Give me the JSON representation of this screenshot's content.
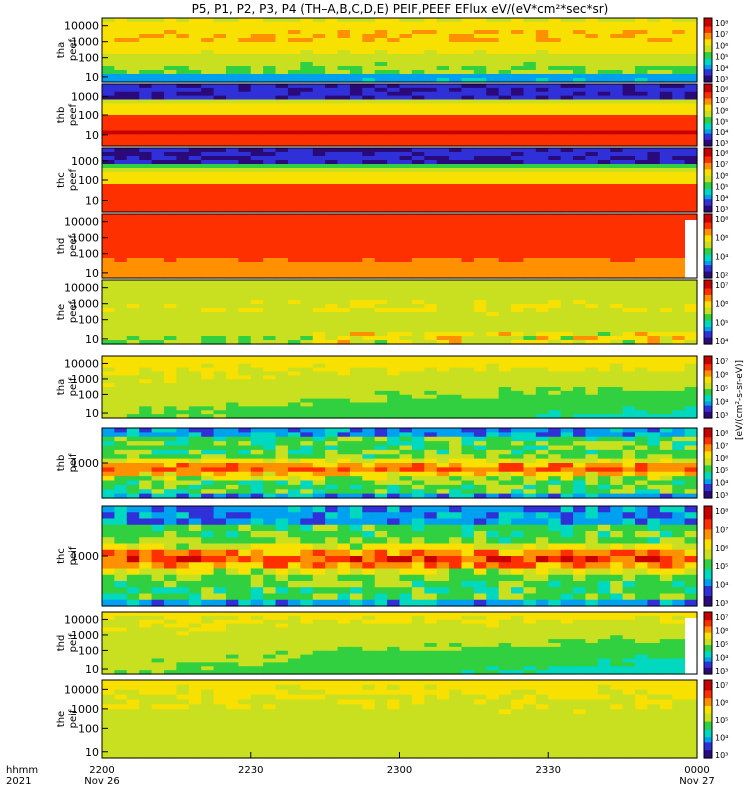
{
  "title": "P5, P1, P2, P3, P4 (TH–A,B,C,D,E) PEIF,PEEF EFlux eV/(eV*cm²*sec*sr)",
  "colorbar_unit_label": "[eV/(cm²-s-sr-eV)]",
  "x_axis": {
    "row_label_1": "hhmm",
    "row_label_2": "2021",
    "ticks": [
      {
        "hhmm": "2200",
        "date": "Nov 26"
      },
      {
        "hhmm": "2230",
        "date": ""
      },
      {
        "hhmm": "2300",
        "date": ""
      },
      {
        "hhmm": "2330",
        "date": ""
      },
      {
        "hhmm": "0000",
        "date": "Nov 27"
      }
    ]
  },
  "colors": {
    "spectrum": [
      "#2a0a7a",
      "#3030d8",
      "#00a0f0",
      "#00d8c0",
      "#30d040",
      "#c8e020",
      "#f8e000",
      "#ff9000",
      "#ff3000",
      "#c80000"
    ]
  },
  "chart_data": [
    {
      "type": "heatmap",
      "panel": "tha-peef",
      "ylabel": [
        "tha",
        "peef"
      ],
      "ytick_labels": [
        "10000",
        "1000",
        "100",
        "10"
      ],
      "cbar_labels": [
        "10⁸",
        "10⁷",
        "10⁶",
        "10⁵",
        "10⁴",
        "10³"
      ],
      "description_values": {
        "x_start": "2200",
        "x_end": "0000",
        "log_y": true
      }
    },
    {
      "type": "heatmap",
      "panel": "thb-peef",
      "ylabel": [
        "thb",
        "peef"
      ],
      "ytick_labels": [
        "1000",
        "100",
        "10"
      ],
      "cbar_labels": [
        "10⁸",
        "10⁷",
        "10⁶",
        "10⁵",
        "10⁴",
        "10³"
      ],
      "description_values": {
        "x_start": "2200",
        "x_end": "0000",
        "log_y": true
      }
    },
    {
      "type": "heatmap",
      "panel": "thc-peef",
      "ylabel": [
        "thc",
        "peef"
      ],
      "ytick_labels": [
        "1000",
        "100",
        "10"
      ],
      "cbar_labels": [
        "10⁸",
        "10⁷",
        "10⁶",
        "10⁵",
        "10⁴",
        "10³"
      ],
      "description_values": {
        "x_start": "2200",
        "x_end": "0000",
        "log_y": true
      }
    },
    {
      "type": "heatmap",
      "panel": "thd-peef",
      "ylabel": [
        "thd",
        "peef"
      ],
      "ytick_labels": [
        "10000",
        "1000",
        "100",
        "10"
      ],
      "cbar_labels": [
        "10⁸",
        "10⁶",
        "10⁴",
        "10²"
      ],
      "description_values": {
        "x_start": "2200",
        "x_end": "0000",
        "log_y": true
      }
    },
    {
      "type": "heatmap",
      "panel": "the-peef",
      "ylabel": [
        "the",
        "peef"
      ],
      "ytick_labels": [
        "10000",
        "1000",
        "100",
        "10"
      ],
      "cbar_labels": [
        "10⁷",
        "10⁶",
        "10⁵",
        "10⁴"
      ],
      "description_values": {
        "x_start": "2200",
        "x_end": "0000",
        "log_y": true
      }
    },
    {
      "type": "heatmap",
      "panel": "tha-peif",
      "ylabel": [
        "tha",
        "peif"
      ],
      "ytick_labels": [
        "10000",
        "1000",
        "100",
        "10"
      ],
      "cbar_labels": [
        "10⁷",
        "10⁶",
        "10⁵",
        "10⁴",
        "10³"
      ],
      "description_values": {
        "x_start": "2200",
        "x_end": "0000",
        "log_y": true
      }
    },
    {
      "type": "heatmap",
      "panel": "thb-peif",
      "ylabel": [
        "thb",
        "peif"
      ],
      "ytick_labels": [
        "1000"
      ],
      "cbar_labels": [
        "10⁸",
        "10⁷",
        "10⁶",
        "10⁵",
        "10⁴",
        "10³"
      ],
      "description_values": {
        "x_start": "2200",
        "x_end": "0000",
        "log_y": true
      }
    },
    {
      "type": "heatmap",
      "panel": "thc-peif",
      "ylabel": [
        "thc",
        "peif"
      ],
      "ytick_labels": [
        "1000"
      ],
      "cbar_labels": [
        "10⁸",
        "10⁷",
        "10⁶",
        "10⁵",
        "10⁴",
        "10³"
      ],
      "description_values": {
        "x_start": "2200",
        "x_end": "0000",
        "log_y": true
      }
    },
    {
      "type": "heatmap",
      "panel": "thd-peif",
      "ylabel": [
        "thd",
        "peif"
      ],
      "ytick_labels": [
        "10000",
        "1000",
        "100",
        "10"
      ],
      "cbar_labels": [
        "10⁷",
        "10⁶",
        "10⁵",
        "10⁴",
        "10³"
      ],
      "description_values": {
        "x_start": "2200",
        "x_end": "0000",
        "log_y": true
      }
    },
    {
      "type": "heatmap",
      "panel": "the-peif",
      "ylabel": [
        "the",
        "peif"
      ],
      "ytick_labels": [
        "10000",
        "1000",
        "100",
        "10"
      ],
      "cbar_labels": [
        "10⁷",
        "10⁶",
        "10⁵",
        "10⁴",
        "10³"
      ],
      "description_values": {
        "x_start": "2200",
        "x_end": "0000",
        "log_y": true
      }
    }
  ]
}
